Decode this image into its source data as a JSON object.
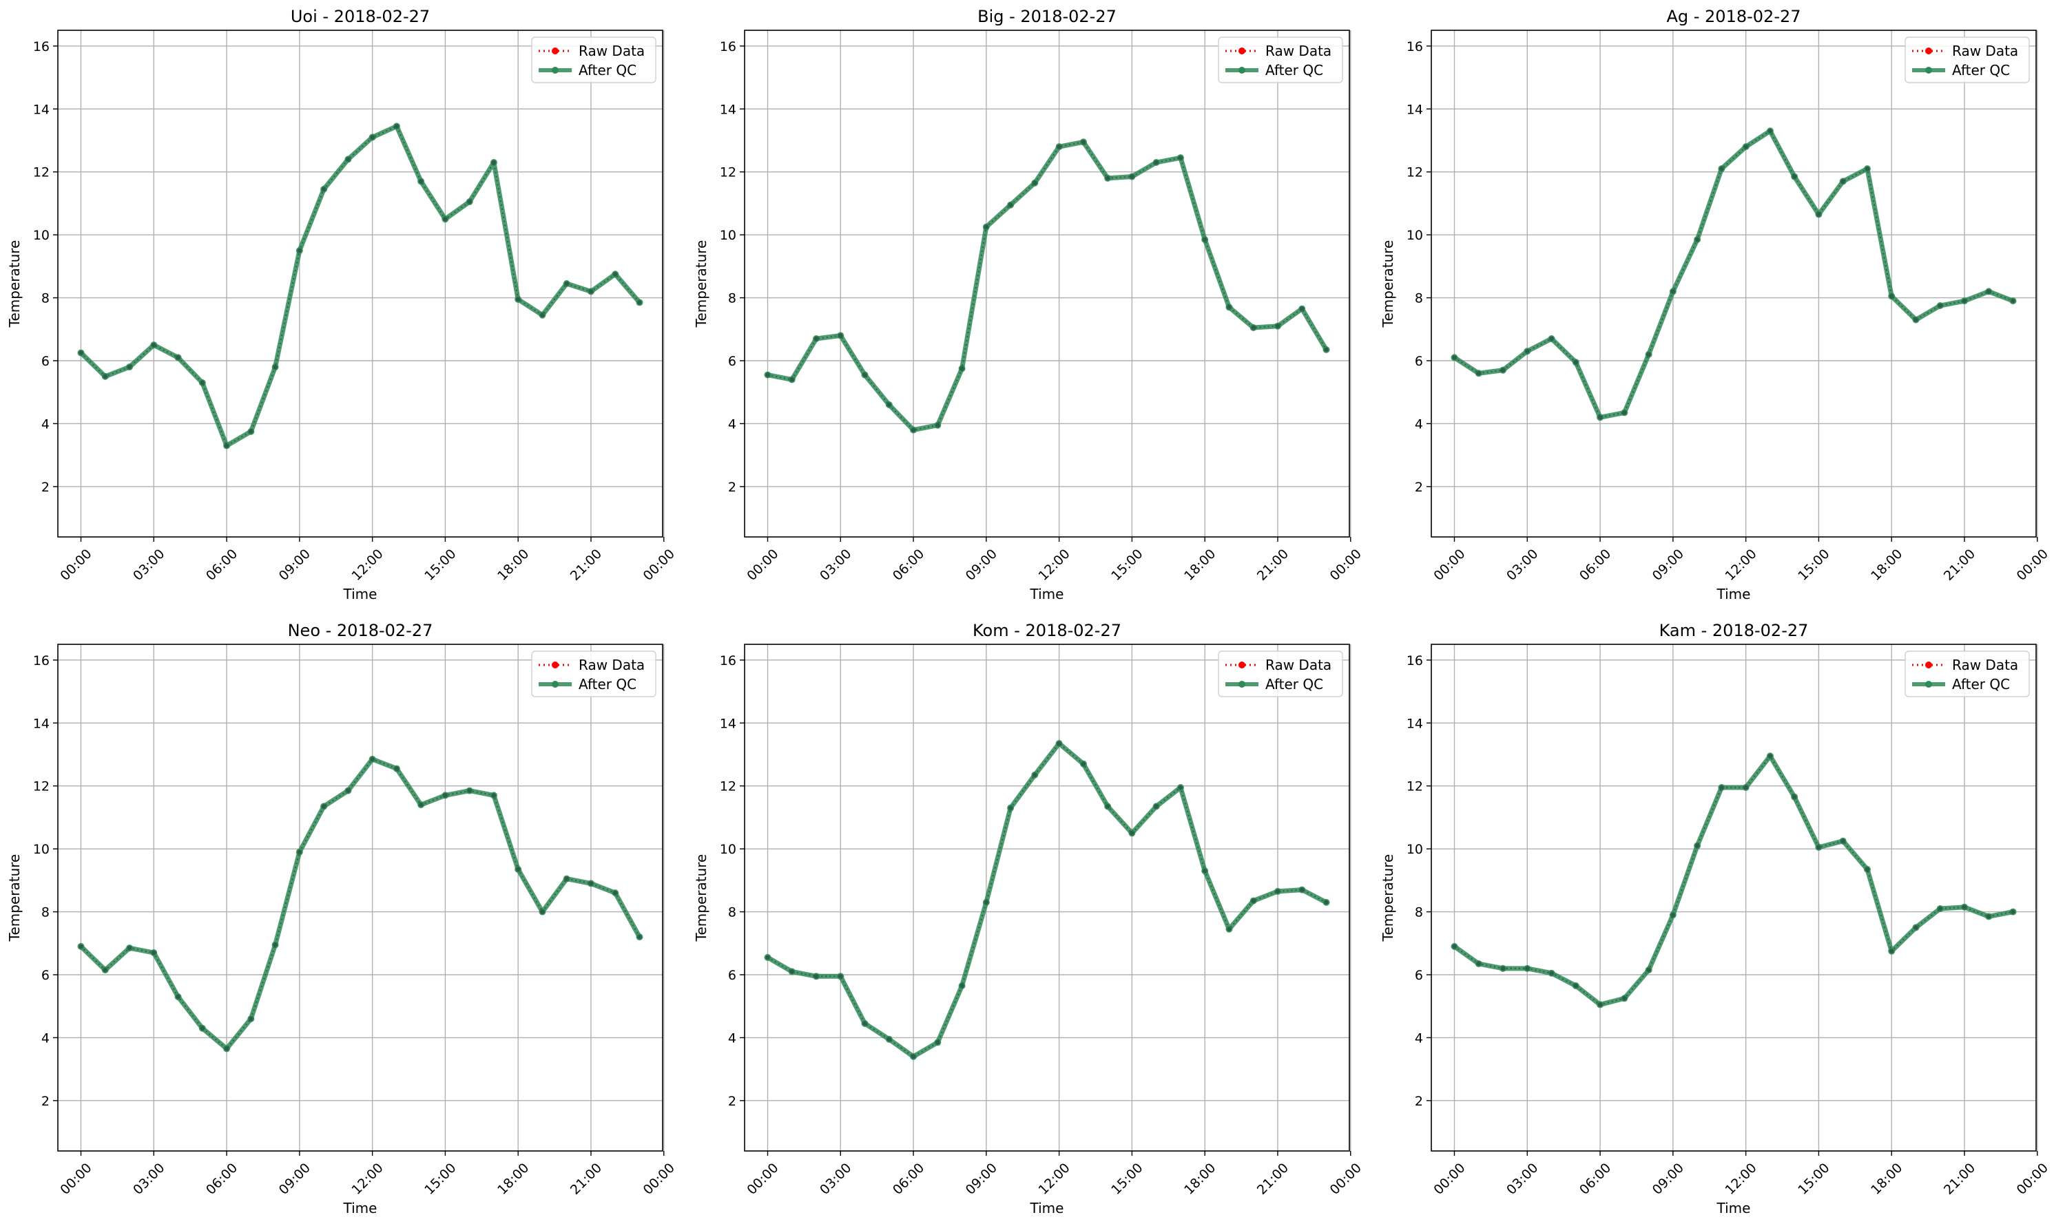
{
  "figure": {
    "colors": {
      "raw": "#ff0000",
      "qc": "#2e8b57",
      "grid": "#b0b0b0",
      "frame": "#000000"
    }
  },
  "chart_data": [
    {
      "type": "line",
      "title": "Uoi - 2018-02-27",
      "xlabel": "Time",
      "ylabel": "Temperature",
      "ylim": [
        0.4,
        16.5
      ],
      "xlim": [
        -0.95,
        23.95
      ],
      "grid": true,
      "legend_position": "top-right",
      "x_ticks": [
        "00:00",
        "03:00",
        "06:00",
        "09:00",
        "12:00",
        "15:00",
        "18:00",
        "21:00",
        "00:00"
      ],
      "y_ticks": [
        2,
        4,
        6,
        8,
        10,
        12,
        14,
        16
      ],
      "x_hours": [
        0,
        1,
        2,
        3,
        4,
        5,
        6,
        7,
        8,
        9,
        10,
        11,
        12,
        13,
        14,
        15,
        16,
        17,
        18,
        19,
        20,
        21,
        22,
        23
      ],
      "series": [
        {
          "name": "Raw Data",
          "values": [
            6.25,
            5.5,
            5.8,
            6.5,
            6.1,
            5.3,
            3.3,
            3.75,
            5.8,
            9.5,
            11.45,
            12.4,
            13.1,
            13.45,
            11.7,
            10.5,
            11.05,
            12.3,
            7.95,
            7.45,
            8.45,
            8.2,
            8.75,
            7.85
          ]
        },
        {
          "name": "After QC",
          "values": [
            6.25,
            5.5,
            5.8,
            6.5,
            6.1,
            5.3,
            3.3,
            3.75,
            5.8,
            9.5,
            11.45,
            12.4,
            13.1,
            13.45,
            11.7,
            10.5,
            11.05,
            12.3,
            7.95,
            7.45,
            8.45,
            8.2,
            8.75,
            7.85
          ]
        }
      ]
    },
    {
      "type": "line",
      "title": "Big - 2018-02-27",
      "xlabel": "Time",
      "ylabel": "Temperature",
      "ylim": [
        0.4,
        16.5
      ],
      "xlim": [
        -0.95,
        23.95
      ],
      "grid": true,
      "legend_position": "top-right",
      "x_ticks": [
        "00:00",
        "03:00",
        "06:00",
        "09:00",
        "12:00",
        "15:00",
        "18:00",
        "21:00",
        "00:00"
      ],
      "y_ticks": [
        2,
        4,
        6,
        8,
        10,
        12,
        14,
        16
      ],
      "x_hours": [
        0,
        1,
        2,
        3,
        4,
        5,
        6,
        7,
        8,
        9,
        10,
        11,
        12,
        13,
        14,
        15,
        16,
        17,
        18,
        19,
        20,
        21,
        22,
        23
      ],
      "series": [
        {
          "name": "Raw Data",
          "values": [
            5.55,
            5.4,
            6.7,
            6.8,
            5.55,
            4.6,
            3.8,
            3.95,
            5.75,
            10.25,
            10.95,
            11.65,
            12.8,
            12.95,
            11.8,
            11.85,
            12.3,
            12.45,
            9.85,
            7.7,
            7.05,
            7.1,
            7.65,
            6.35
          ]
        },
        {
          "name": "After QC",
          "values": [
            5.55,
            5.4,
            6.7,
            6.8,
            5.55,
            4.6,
            3.8,
            3.95,
            5.75,
            10.25,
            10.95,
            11.65,
            12.8,
            12.95,
            11.8,
            11.85,
            12.3,
            12.45,
            9.85,
            7.7,
            7.05,
            7.1,
            7.65,
            6.35
          ]
        }
      ]
    },
    {
      "type": "line",
      "title": "Ag - 2018-02-27",
      "xlabel": "Time",
      "ylabel": "Temperature",
      "ylim": [
        0.4,
        16.5
      ],
      "xlim": [
        -0.95,
        23.95
      ],
      "grid": true,
      "legend_position": "top-right",
      "x_ticks": [
        "00:00",
        "03:00",
        "06:00",
        "09:00",
        "12:00",
        "15:00",
        "18:00",
        "21:00",
        "00:00"
      ],
      "y_ticks": [
        2,
        4,
        6,
        8,
        10,
        12,
        14,
        16
      ],
      "x_hours": [
        0,
        1,
        2,
        3,
        4,
        5,
        6,
        7,
        8,
        9,
        10,
        11,
        12,
        13,
        14,
        15,
        16,
        17,
        18,
        19,
        20,
        21,
        22,
        23
      ],
      "series": [
        {
          "name": "Raw Data",
          "values": [
            6.1,
            5.6,
            5.7,
            6.3,
            6.7,
            5.95,
            4.2,
            4.35,
            6.2,
            8.2,
            9.85,
            12.1,
            12.8,
            13.3,
            11.85,
            10.65,
            11.7,
            12.1,
            8.05,
            7.3,
            7.75,
            7.9,
            8.2,
            7.9
          ]
        },
        {
          "name": "After QC",
          "values": [
            6.1,
            5.6,
            5.7,
            6.3,
            6.7,
            5.95,
            4.2,
            4.35,
            6.2,
            8.2,
            9.85,
            12.1,
            12.8,
            13.3,
            11.85,
            10.65,
            11.7,
            12.1,
            8.05,
            7.3,
            7.75,
            7.9,
            8.2,
            7.9
          ]
        }
      ]
    },
    {
      "type": "line",
      "title": "Neo - 2018-02-27",
      "xlabel": "Time",
      "ylabel": "Temperature",
      "ylim": [
        0.4,
        16.5
      ],
      "xlim": [
        -0.95,
        23.95
      ],
      "grid": true,
      "legend_position": "top-right",
      "x_ticks": [
        "00:00",
        "03:00",
        "06:00",
        "09:00",
        "12:00",
        "15:00",
        "18:00",
        "21:00",
        "00:00"
      ],
      "y_ticks": [
        2,
        4,
        6,
        8,
        10,
        12,
        14,
        16
      ],
      "x_hours": [
        0,
        1,
        2,
        3,
        4,
        5,
        6,
        7,
        8,
        9,
        10,
        11,
        12,
        13,
        14,
        15,
        16,
        17,
        18,
        19,
        20,
        21,
        22,
        23
      ],
      "series": [
        {
          "name": "Raw Data",
          "values": [
            6.9,
            6.15,
            6.85,
            6.7,
            5.3,
            4.3,
            3.65,
            4.6,
            6.95,
            9.9,
            11.35,
            11.85,
            12.85,
            12.55,
            11.4,
            11.7,
            11.85,
            11.7,
            9.35,
            8.0,
            9.05,
            8.9,
            8.6,
            7.2
          ]
        },
        {
          "name": "After QC",
          "values": [
            6.9,
            6.15,
            6.85,
            6.7,
            5.3,
            4.3,
            3.65,
            4.6,
            6.95,
            9.9,
            11.35,
            11.85,
            12.85,
            12.55,
            11.4,
            11.7,
            11.85,
            11.7,
            9.35,
            8.0,
            9.05,
            8.9,
            8.6,
            7.2
          ]
        }
      ]
    },
    {
      "type": "line",
      "title": "Kom - 2018-02-27",
      "xlabel": "Time",
      "ylabel": "Temperature",
      "ylim": [
        0.4,
        16.5
      ],
      "xlim": [
        -0.95,
        23.95
      ],
      "grid": true,
      "legend_position": "top-right",
      "x_ticks": [
        "00:00",
        "03:00",
        "06:00",
        "09:00",
        "12:00",
        "15:00",
        "18:00",
        "21:00",
        "00:00"
      ],
      "y_ticks": [
        2,
        4,
        6,
        8,
        10,
        12,
        14,
        16
      ],
      "x_hours": [
        0,
        1,
        2,
        3,
        4,
        5,
        6,
        7,
        8,
        9,
        10,
        11,
        12,
        13,
        14,
        15,
        16,
        17,
        18,
        19,
        20,
        21,
        22,
        23
      ],
      "series": [
        {
          "name": "Raw Data",
          "values": [
            6.55,
            6.1,
            5.95,
            5.95,
            4.45,
            3.95,
            3.4,
            3.85,
            5.65,
            8.3,
            11.3,
            12.35,
            13.35,
            12.7,
            11.35,
            10.5,
            11.35,
            11.95,
            9.3,
            7.45,
            8.35,
            8.65,
            8.7,
            8.3
          ]
        },
        {
          "name": "After QC",
          "values": [
            6.55,
            6.1,
            5.95,
            5.95,
            4.45,
            3.95,
            3.4,
            3.85,
            5.65,
            8.3,
            11.3,
            12.35,
            13.35,
            12.7,
            11.35,
            10.5,
            11.35,
            11.95,
            9.3,
            7.45,
            8.35,
            8.65,
            8.7,
            8.3
          ]
        }
      ]
    },
    {
      "type": "line",
      "title": "Kam - 2018-02-27",
      "xlabel": "Time",
      "ylabel": "Temperature",
      "ylim": [
        0.4,
        16.5
      ],
      "xlim": [
        -0.95,
        23.95
      ],
      "grid": true,
      "legend_position": "top-right",
      "x_ticks": [
        "00:00",
        "03:00",
        "06:00",
        "09:00",
        "12:00",
        "15:00",
        "18:00",
        "21:00",
        "00:00"
      ],
      "y_ticks": [
        2,
        4,
        6,
        8,
        10,
        12,
        14,
        16
      ],
      "x_hours": [
        0,
        1,
        2,
        3,
        4,
        5,
        6,
        7,
        8,
        9,
        10,
        11,
        12,
        13,
        14,
        15,
        16,
        17,
        18,
        19,
        20,
        21,
        22,
        23
      ],
      "series": [
        {
          "name": "Raw Data",
          "values": [
            6.9,
            6.35,
            6.2,
            6.2,
            6.05,
            5.65,
            5.05,
            5.25,
            6.15,
            7.9,
            10.1,
            11.95,
            11.95,
            12.95,
            11.65,
            10.05,
            10.25,
            9.35,
            6.75,
            7.5,
            8.1,
            8.15,
            7.85,
            8.0
          ]
        },
        {
          "name": "After QC",
          "values": [
            6.9,
            6.35,
            6.2,
            6.2,
            6.05,
            5.65,
            5.05,
            5.25,
            6.15,
            7.9,
            10.1,
            11.95,
            11.95,
            12.95,
            11.65,
            10.05,
            10.25,
            9.35,
            6.75,
            7.5,
            8.1,
            8.15,
            7.85,
            8.0
          ]
        }
      ]
    }
  ]
}
